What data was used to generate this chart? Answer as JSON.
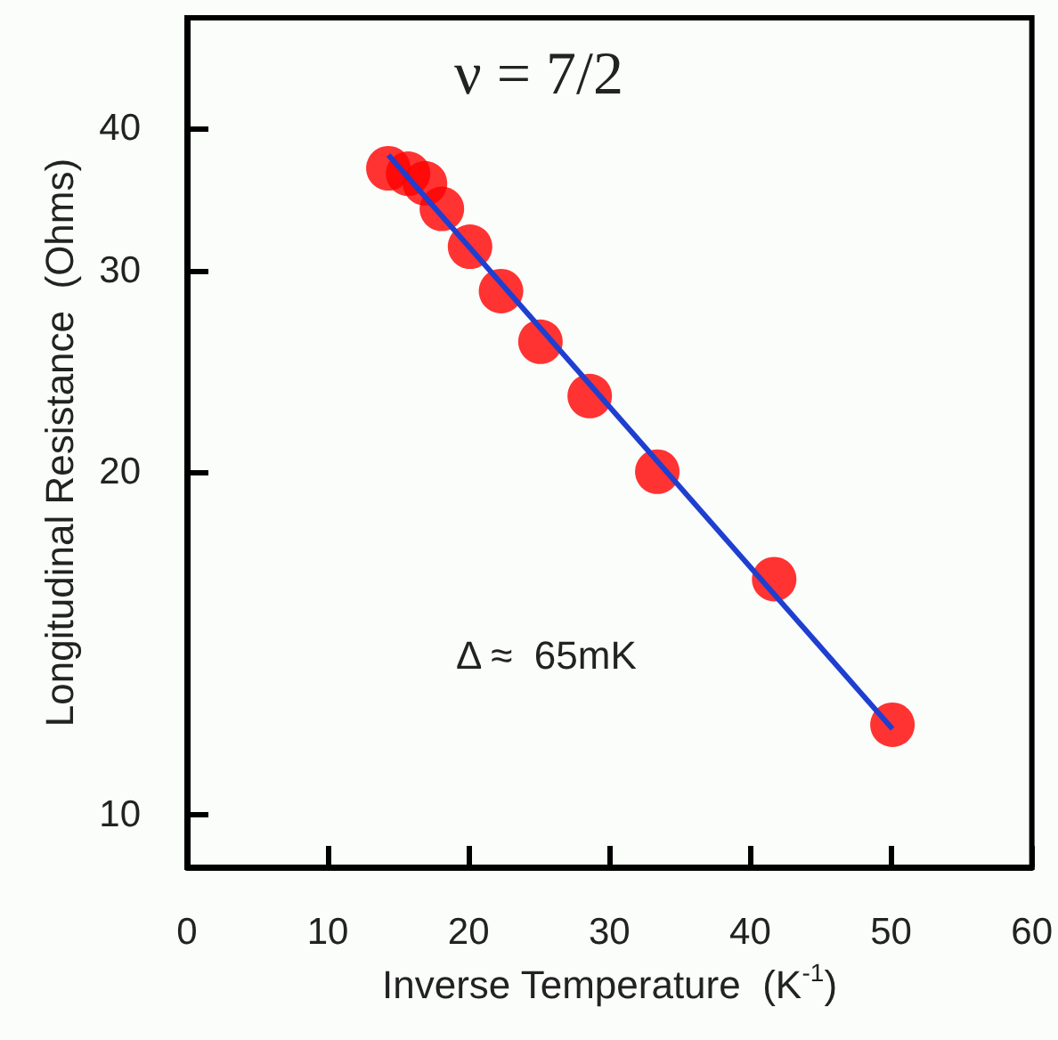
{
  "chart_data": {
    "type": "scatter",
    "xlabel": "Inverse Temperature  (K$^{-1}$)",
    "ylabel": "Longitudinal Resistance  (Ohms)",
    "annotations": [
      "ν = 7/2",
      "Δ ≈  65mK"
    ],
    "xlim": [
      0,
      60
    ],
    "xticks": [
      0,
      10,
      20,
      30,
      40,
      50,
      60
    ],
    "ylim": [
      9,
      50
    ],
    "yticks": [
      10,
      20,
      30,
      40
    ],
    "log": "y",
    "grid": false,
    "series": [
      {
        "marker": "circle",
        "color": "#ff0000",
        "x": [
          14.3,
          15.7,
          16.9,
          18.1,
          20.1,
          22.3,
          25.1,
          28.6,
          33.4,
          41.7,
          50.1
        ],
        "values": [
          36.9,
          36.5,
          35.8,
          34.0,
          31.5,
          28.8,
          26.0,
          23.3,
          20.0,
          16.1,
          12.0
        ]
      },
      {
        "type": "line",
        "marker": "none",
        "line_style": "solid",
        "color": "#1f3fd0",
        "x": [
          14.3,
          50.1
        ],
        "values": [
          37.9,
          11.9
        ]
      }
    ]
  }
}
